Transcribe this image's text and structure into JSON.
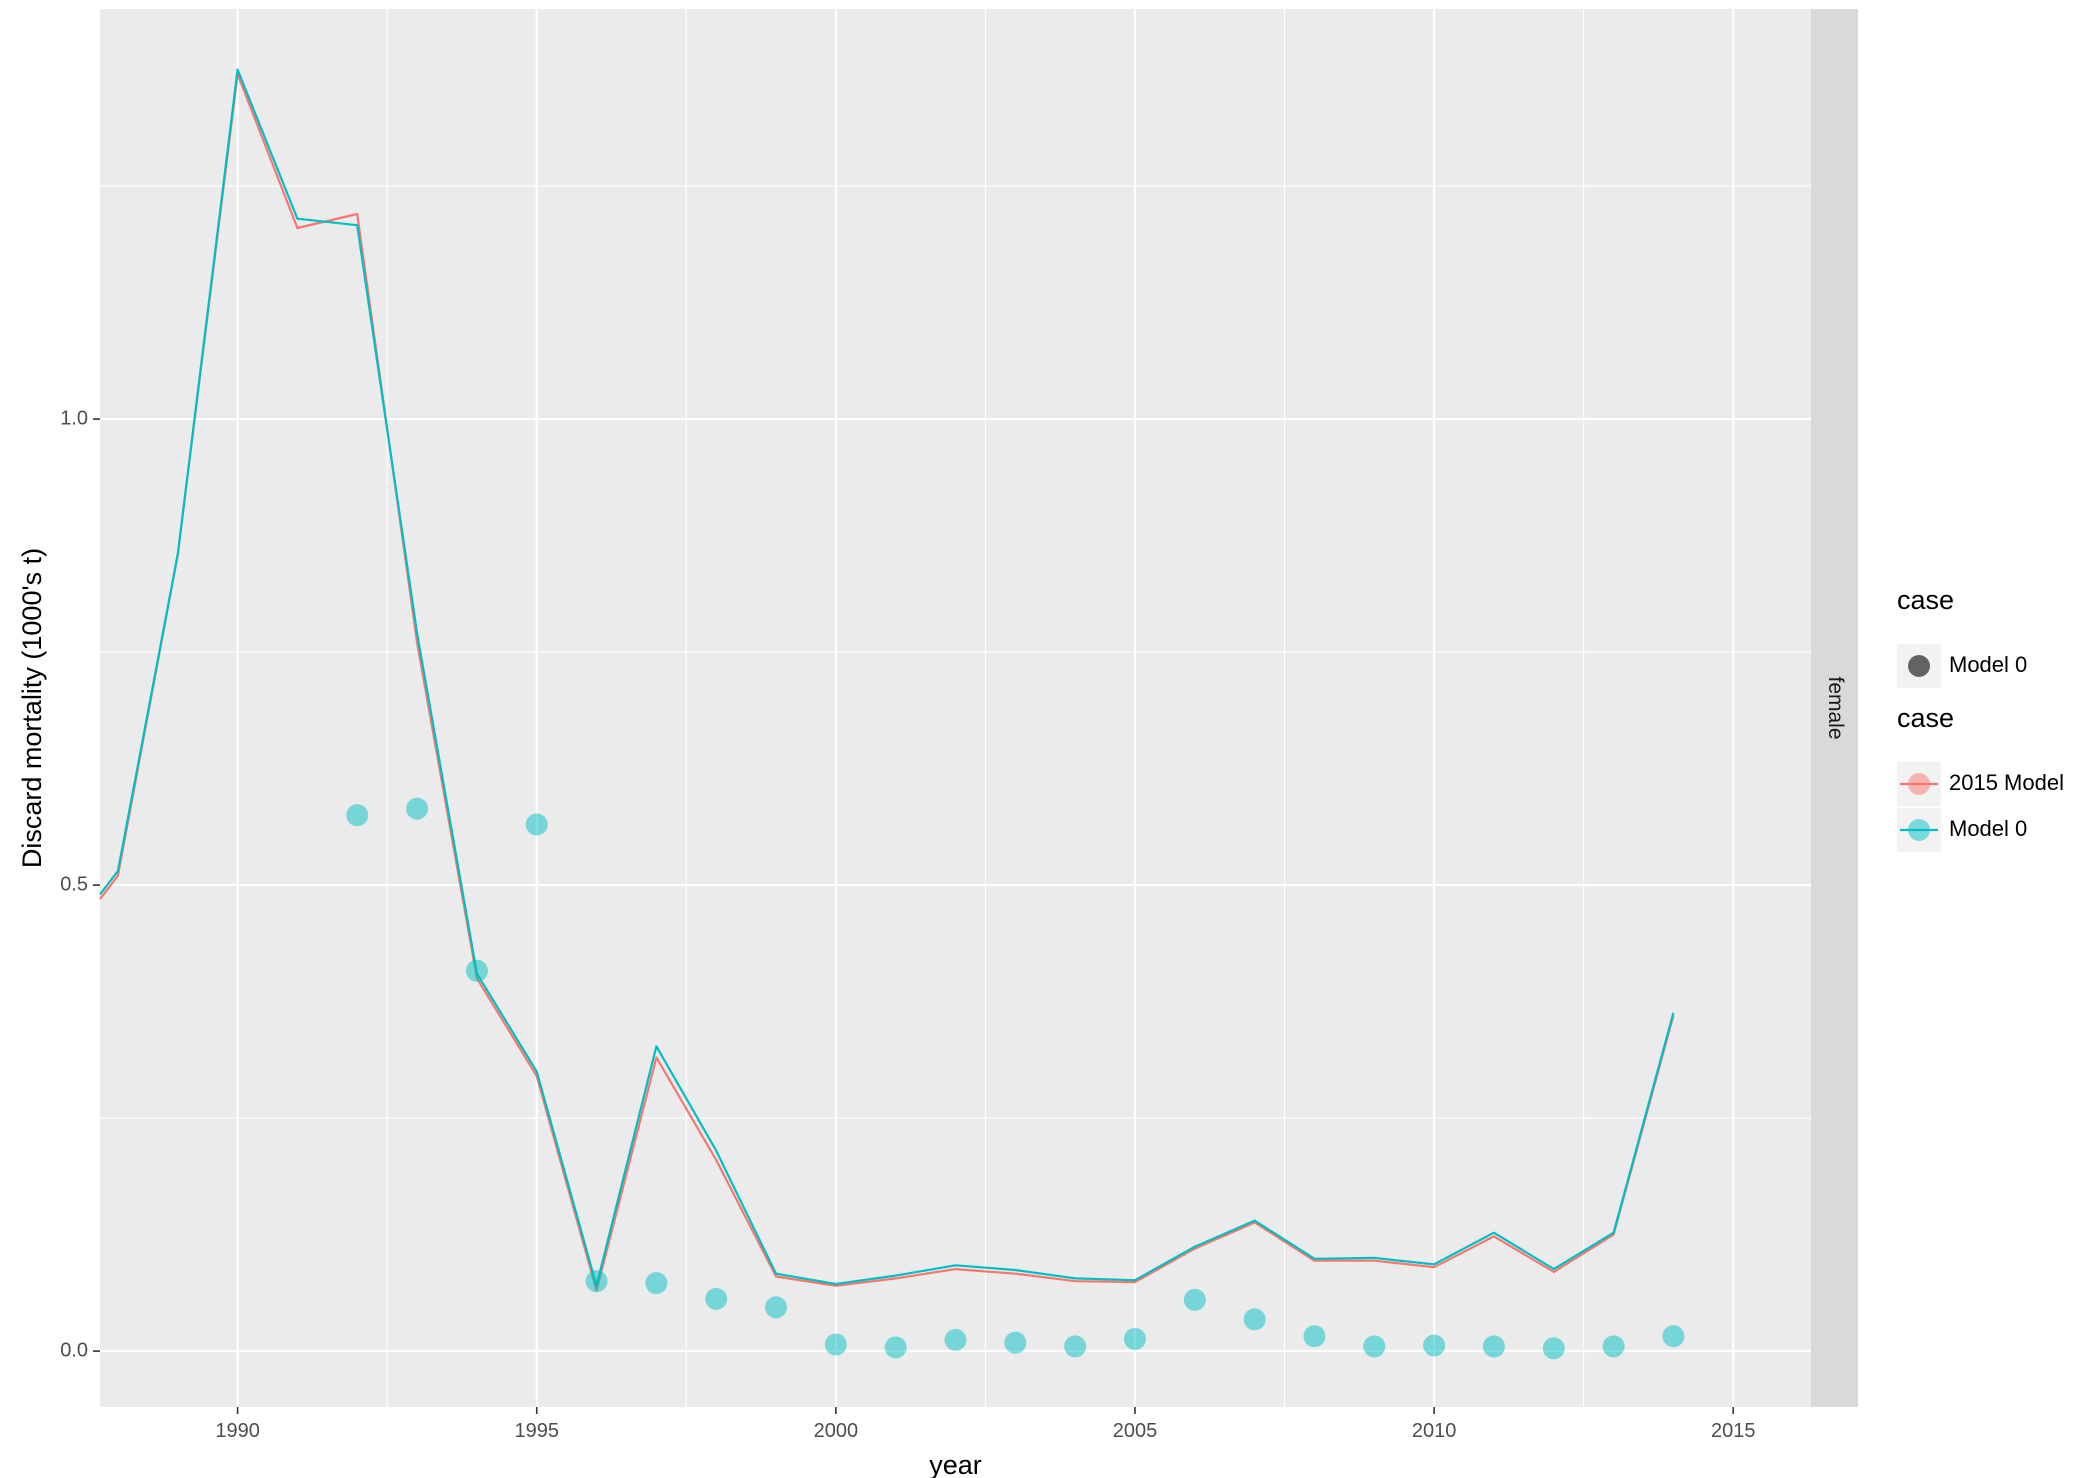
{
  "chart_data": {
    "type": "line",
    "xlabel": "year",
    "ylabel": "Discard mortality (1000's t)",
    "xlim": [
      1987.7,
      2016.3
    ],
    "ylim": [
      -0.06,
      1.44
    ],
    "xticks": [
      1990,
      1995,
      2000,
      2005,
      2010,
      2015
    ],
    "xtick_labels": [
      "1990",
      "1995",
      "2000",
      "2005",
      "2010",
      "2015"
    ],
    "yticks": [
      0.0,
      0.5,
      1.0
    ],
    "ytick_labels": [
      "0.0",
      "0.5",
      "1.0"
    ],
    "grid": true,
    "facet_strip": "female",
    "series": [
      {
        "name": "2015 Model",
        "kind": "line",
        "color": "#F8766D",
        "x": [
          1987.7,
          1988,
          1989,
          1990,
          1991,
          1992,
          1993,
          1994,
          1995,
          1996,
          1997,
          1998,
          1999,
          2000,
          2001,
          2002,
          2003,
          2004,
          2005,
          2006,
          2007,
          2008,
          2009,
          2010,
          2011,
          2012,
          2013,
          2014
        ],
        "y": [
          0.485,
          0.51,
          0.855,
          1.37,
          1.205,
          1.22,
          0.76,
          0.4,
          0.295,
          0.065,
          0.315,
          0.205,
          0.08,
          0.07,
          0.078,
          0.088,
          0.083,
          0.075,
          0.074,
          0.11,
          0.138,
          0.097,
          0.097,
          0.09,
          0.123,
          0.085,
          0.125,
          0.36
        ]
      },
      {
        "name": "Model 0",
        "kind": "line",
        "color": "#00BFC4",
        "x": [
          1987.7,
          1988,
          1989,
          1990,
          1991,
          1992,
          1993,
          1994,
          1995,
          1996,
          1997,
          1998,
          1999,
          2000,
          2001,
          2002,
          2003,
          2004,
          2005,
          2006,
          2007,
          2008,
          2009,
          2010,
          2011,
          2012,
          2013,
          2014
        ],
        "y": [
          0.49,
          0.515,
          0.855,
          1.375,
          1.215,
          1.208,
          0.77,
          0.405,
          0.3,
          0.07,
          0.327,
          0.215,
          0.083,
          0.072,
          0.081,
          0.092,
          0.087,
          0.078,
          0.076,
          0.112,
          0.14,
          0.099,
          0.1,
          0.093,
          0.127,
          0.088,
          0.127,
          0.363
        ]
      },
      {
        "name": "Model 0",
        "kind": "points",
        "color": "#00BFC4",
        "x": [
          1992,
          1993,
          1994,
          1995,
          1996,
          1997,
          1998,
          1999,
          2000,
          2001,
          2002,
          2003,
          2004,
          2005,
          2006,
          2007,
          2008,
          2009,
          2010,
          2011,
          2012,
          2013,
          2014
        ],
        "y": [
          0.575,
          0.582,
          0.408,
          0.565,
          0.075,
          0.073,
          0.056,
          0.047,
          0.007,
          0.004,
          0.012,
          0.009,
          0.005,
          0.013,
          0.055,
          0.034,
          0.016,
          0.005,
          0.006,
          0.005,
          0.003,
          0.005,
          0.016
        ]
      }
    ],
    "legends": [
      {
        "title": "case",
        "entries": [
          {
            "label": "Model 0",
            "key": "point",
            "color": "#636363"
          }
        ]
      },
      {
        "title": "case",
        "entries": [
          {
            "label": "2015 Model",
            "key": "point-line",
            "color": "#F8766D"
          },
          {
            "label": "Model 0",
            "key": "point-line",
            "color": "#00BFC4"
          }
        ]
      }
    ],
    "legend_position": "right"
  }
}
